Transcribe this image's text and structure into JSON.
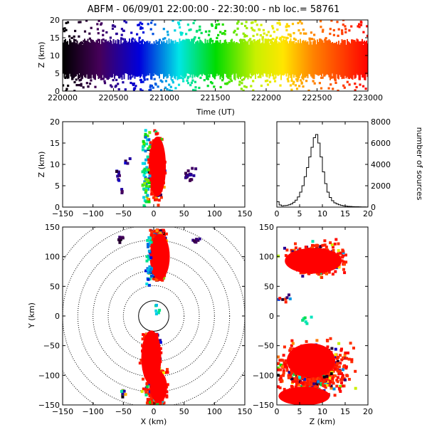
{
  "chart_data": [
    {
      "type": "scatter",
      "panel": "time-altitude",
      "title": "ABFM - 06/09/01 22:00:00 - 22:30:00 - nb loc.=  58761",
      "xlabel": "Time (UT)",
      "ylabel": "Z (km)",
      "xlim": [
        220000,
        223000
      ],
      "ylim": [
        0,
        20
      ],
      "xticks": [
        "220000",
        "220500",
        "221000",
        "221500",
        "222000",
        "222500",
        "223000"
      ],
      "yticks": [
        "0",
        "5",
        "10",
        "15",
        "20"
      ],
      "color_scale": "time, black-purple-blue-cyan-green-yellow-orange-red",
      "dense_band_z": [
        5,
        13
      ],
      "sparse_z_range": [
        0,
        20
      ]
    },
    {
      "type": "scatter",
      "panel": "x-altitude",
      "xlabel": "",
      "ylabel": "Z (km)",
      "xlim": [
        -150,
        150
      ],
      "ylim": [
        0,
        20
      ],
      "xticks": [
        "−150",
        "−100",
        "−50",
        "0",
        "50",
        "100",
        "150"
      ],
      "yticks": [
        "0",
        "5",
        "10",
        "15",
        "20"
      ],
      "main_cluster": {
        "x_range": [
          -10,
          22
        ],
        "z_range": [
          0,
          20
        ],
        "center_z": 9
      },
      "outliers": [
        {
          "x": -55,
          "z": 7
        },
        {
          "x": -52,
          "z": 4
        },
        {
          "x": -45,
          "z": 11
        },
        {
          "x": -60,
          "z": 8
        },
        {
          "x": 55,
          "z": 8
        },
        {
          "x": 60,
          "z": 6
        },
        {
          "x": 65,
          "z": 8
        },
        {
          "x": 58,
          "z": 7
        }
      ]
    },
    {
      "type": "histogram",
      "panel": "altitude-histogram",
      "xlabel": "",
      "ylabel": "number of sources",
      "xlim": [
        0,
        20
      ],
      "ylim": [
        0,
        8000
      ],
      "xticks": [
        "0",
        "5",
        "10",
        "15",
        "20"
      ],
      "yticks": [
        "0",
        "2000",
        "4000",
        "6000",
        "8000"
      ],
      "bins": [
        0,
        0.5,
        1,
        1.5,
        2,
        2.5,
        3,
        3.5,
        4,
        4.5,
        5,
        5.5,
        6,
        6.5,
        7,
        7.5,
        8,
        8.5,
        9,
        9.5,
        10,
        10.5,
        11,
        11.5,
        12,
        12.5,
        13,
        13.5,
        14,
        14.5,
        15,
        15.5,
        16,
        16.5,
        17,
        17.5,
        18,
        18.5,
        19,
        19.5
      ],
      "values": [
        500,
        200,
        120,
        140,
        160,
        220,
        300,
        450,
        650,
        950,
        1400,
        2000,
        2850,
        3700,
        4700,
        5600,
        6500,
        6800,
        6000,
        4700,
        3300,
        2200,
        1400,
        900,
        600,
        400,
        300,
        220,
        160,
        120,
        90,
        70,
        55,
        45,
        35,
        30,
        25,
        20,
        15,
        12
      ]
    },
    {
      "type": "scatter",
      "panel": "plan-view",
      "xlabel": "X (km)",
      "ylabel": "Y (km)",
      "xlim": [
        -150,
        150
      ],
      "ylim": [
        -150,
        150
      ],
      "xticks": [
        "−150",
        "−100",
        "−50",
        "0",
        "50",
        "100",
        "150"
      ],
      "yticks": [
        "−150",
        "−100",
        "−50",
        "0",
        "50",
        "100",
        "150"
      ],
      "range_rings_km": [
        25,
        50,
        75,
        100,
        125,
        150,
        175
      ],
      "clusters": [
        {
          "x_range": [
            -15,
            30
          ],
          "y_range": [
            50,
            150
          ]
        },
        {
          "x_range": [
            -30,
            25
          ],
          "y_range": [
            -150,
            -25
          ]
        }
      ]
    },
    {
      "type": "scatter",
      "panel": "altitude-y",
      "xlabel": "Z (km)",
      "ylabel": "",
      "xlim": [
        0,
        20
      ],
      "ylim": [
        -150,
        150
      ],
      "xticks": [
        "0",
        "5",
        "10",
        "15",
        "20"
      ],
      "yticks": [
        "−150",
        "−100",
        "−50",
        "0",
        "50",
        "100",
        "150"
      ],
      "clusters": [
        {
          "z_range": [
            1,
            18
          ],
          "y_range": [
            55,
            135
          ]
        },
        {
          "z_range": [
            1,
            20
          ],
          "y_range": [
            -150,
            -40
          ]
        }
      ]
    }
  ]
}
